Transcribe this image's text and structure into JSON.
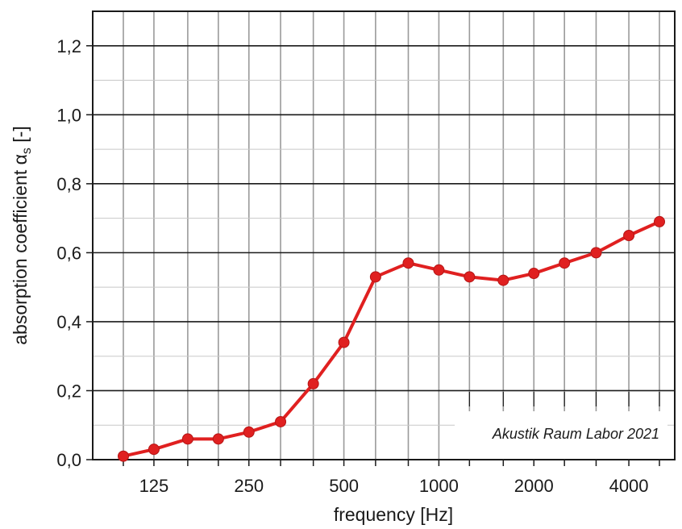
{
  "chart_data": {
    "type": "line",
    "x": [
      100,
      125,
      160,
      200,
      250,
      315,
      400,
      500,
      630,
      800,
      1000,
      1250,
      1600,
      2000,
      2500,
      3150,
      4000,
      5000
    ],
    "x_tick_labels": [
      "125",
      "250",
      "500",
      "1000",
      "2000",
      "4000"
    ],
    "x_tick_values": [
      125,
      250,
      500,
      1000,
      2000,
      4000
    ],
    "series": [
      {
        "values": [
          0.01,
          0.03,
          0.06,
          0.06,
          0.08,
          0.11,
          0.22,
          0.34,
          0.53,
          0.57,
          0.55,
          0.53,
          0.52,
          0.54,
          0.57,
          0.6,
          0.65,
          0.69
        ],
        "color": "#e02020"
      }
    ],
    "xlabel": "frequency [Hz]",
    "ylabel": "absorption coefficient α",
    "ylabel_subscript": "s",
    "ylabel_unit": " [-]",
    "y_tick_labels": [
      "0,0",
      "0,2",
      "0,4",
      "0,6",
      "0,8",
      "1,0",
      "1,2"
    ],
    "y_tick_values": [
      0,
      0.2,
      0.4,
      0.6,
      0.8,
      1.0,
      1.2
    ],
    "ylim": [
      0,
      1.3
    ],
    "x_scale": "log (third-octave bands)",
    "grid": true,
    "annotation": "Akustik Raum Labor 2021"
  }
}
